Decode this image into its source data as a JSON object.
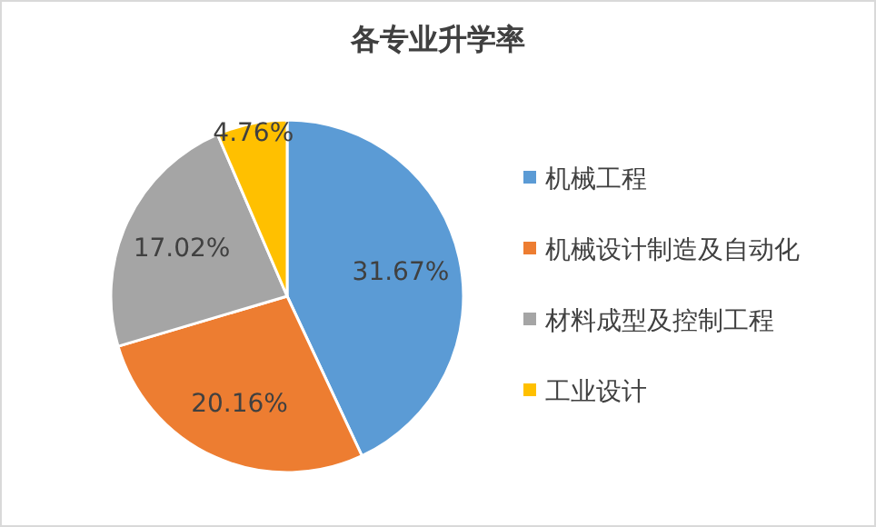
{
  "chart_data": {
    "type": "pie",
    "title": "各专业升学率",
    "categories": [
      "机械工程",
      "机械设计制造及自动化",
      "材料成型及控制工程",
      "工业设计"
    ],
    "values": [
      31.67,
      20.16,
      17.02,
      4.76
    ],
    "value_labels": [
      "31.67%",
      "20.16%",
      "17.02%",
      "4.76%"
    ],
    "colors": [
      "#5b9bd5",
      "#ed7d31",
      "#a5a5a5",
      "#ffc000"
    ],
    "legend": "right"
  }
}
